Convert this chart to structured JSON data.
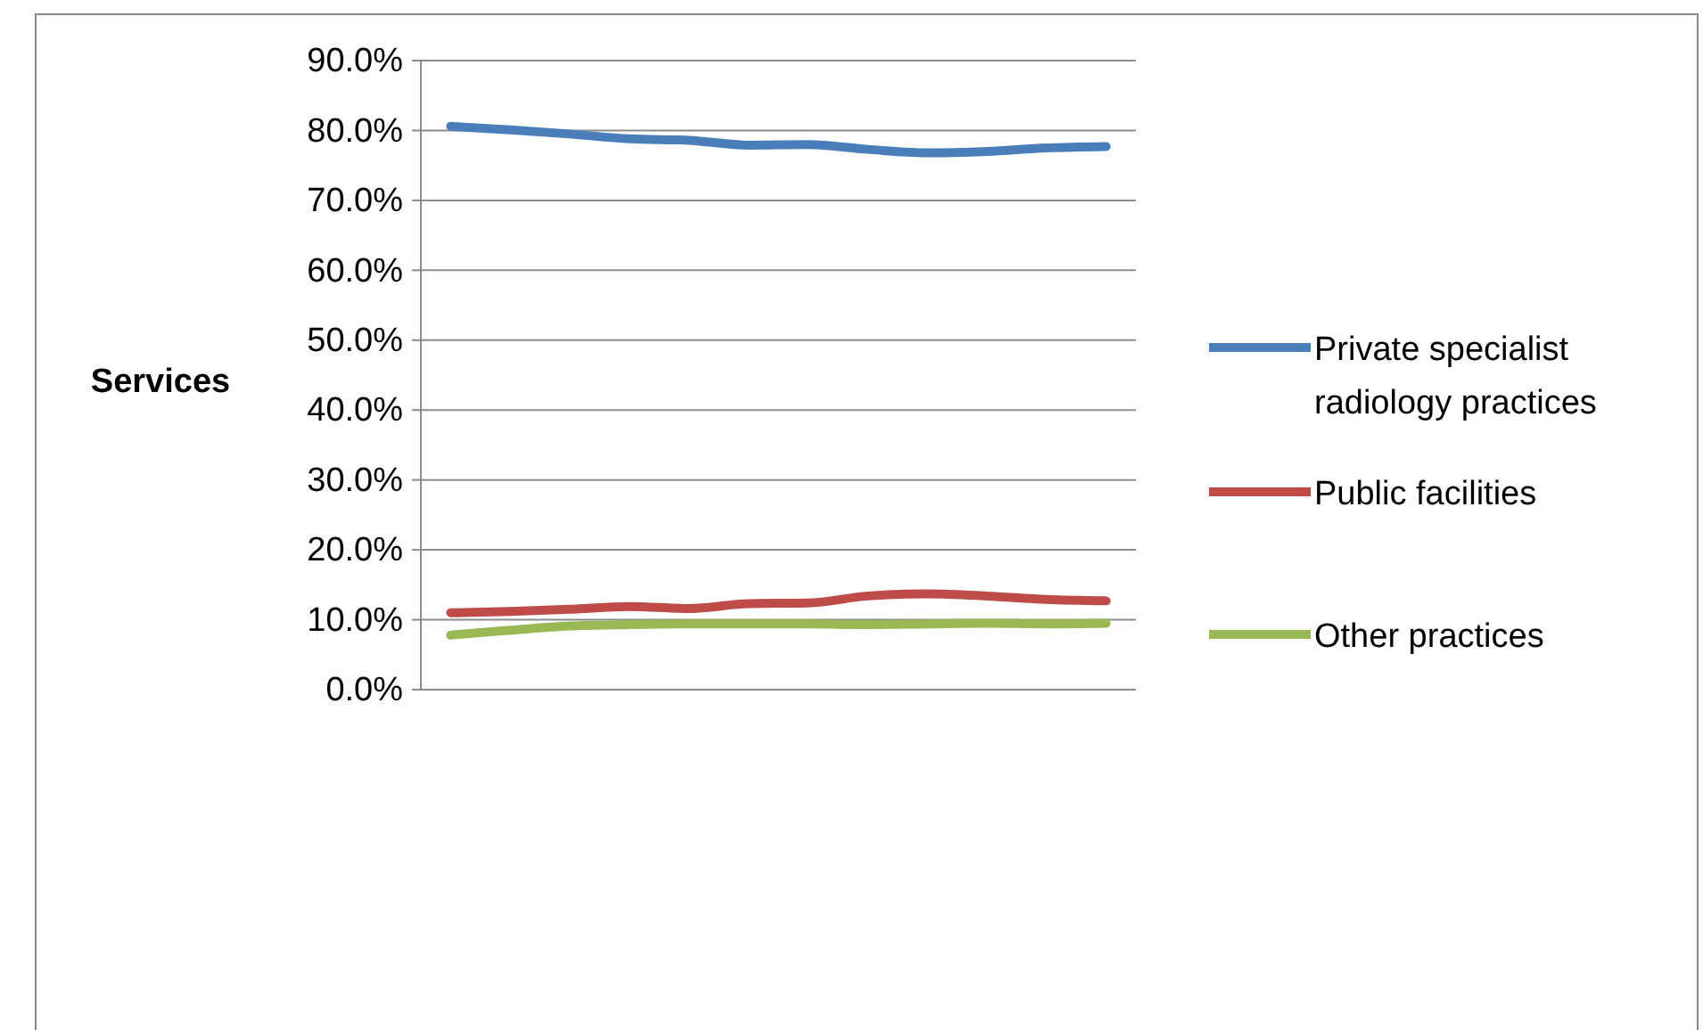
{
  "chart_data": {
    "type": "line",
    "ylabel": "Services",
    "categories": [
      null,
      null,
      null,
      null,
      null,
      null,
      null,
      null,
      null,
      null,
      null,
      null
    ],
    "series": [
      {
        "name": "Private specialist radiology practices",
        "color": "#4a7ebb",
        "values": [
          80.6,
          80.1,
          79.5,
          78.8,
          78.6,
          77.9,
          78.0,
          77.3,
          76.8,
          77.0,
          77.5,
          77.7
        ]
      },
      {
        "name": "Public facilities",
        "color": "#be4b48",
        "values": [
          11.0,
          11.2,
          11.5,
          11.9,
          11.6,
          12.3,
          12.4,
          13.4,
          13.7,
          13.4,
          12.9,
          12.7
        ]
      },
      {
        "name": "Other practices",
        "color": "#98b954",
        "values": [
          7.8,
          8.5,
          9.1,
          9.3,
          9.4,
          9.4,
          9.4,
          9.3,
          9.4,
          9.5,
          9.4,
          9.5
        ]
      }
    ],
    "ylim": [
      0,
      90
    ],
    "yticks": [
      {
        "value": 0,
        "label": "0.0%"
      },
      {
        "value": 10,
        "label": "10.0%"
      },
      {
        "value": 20,
        "label": "20.0%"
      },
      {
        "value": 30,
        "label": "30.0%"
      },
      {
        "value": 40,
        "label": "40.0%"
      },
      {
        "value": 50,
        "label": "50.0%"
      },
      {
        "value": 60,
        "label": "60.0%"
      },
      {
        "value": 70,
        "label": "70.0%"
      },
      {
        "value": 80,
        "label": "80.0%"
      },
      {
        "value": 90,
        "label": "90.0%"
      }
    ],
    "grid": "y",
    "legend": "right",
    "tick_labels": "y",
    "line_style": "solid"
  }
}
